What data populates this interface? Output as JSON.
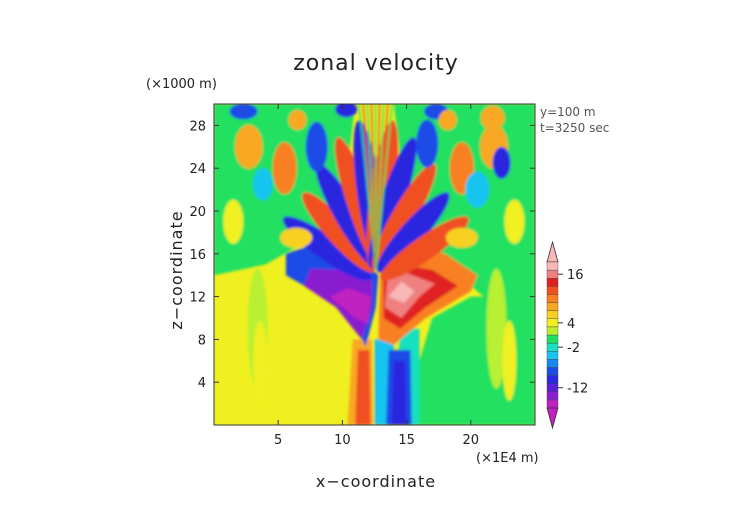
{
  "chart_data": {
    "type": "heatmap",
    "title": "zonal velocity",
    "xlabel": "x−coordinate",
    "ylabel": "z−coordinate",
    "x_unit": "(×1E4 m)",
    "y_unit": "(×1000 m)",
    "annotations": [
      "y=100 m",
      "t=3250 sec"
    ],
    "xlim": [
      0,
      25
    ],
    "ylim": [
      0,
      30
    ],
    "x_ticks": [
      5,
      10,
      15,
      20
    ],
    "y_ticks": [
      4,
      8,
      12,
      16,
      20,
      24,
      28
    ],
    "colorbar": {
      "labels": [
        16,
        4,
        -2,
        -12
      ],
      "levels": [
        -16,
        -14,
        -12,
        -10,
        -8,
        -6,
        -4,
        -2,
        0,
        2,
        4,
        6,
        8,
        10,
        12,
        14,
        16,
        18
      ],
      "colors": [
        "#c020c0",
        "#8a1fd0",
        "#5a20d8",
        "#2a28e0",
        "#1a4ce8",
        "#1a86f0",
        "#18c4f0",
        "#18e0c0",
        "#20e060",
        "#b8f030",
        "#f0f020",
        "#f8d020",
        "#f8a820",
        "#f88020",
        "#f05020",
        "#e02020",
        "#f08080",
        "#f8b8b8"
      ]
    },
    "grid": false
  }
}
